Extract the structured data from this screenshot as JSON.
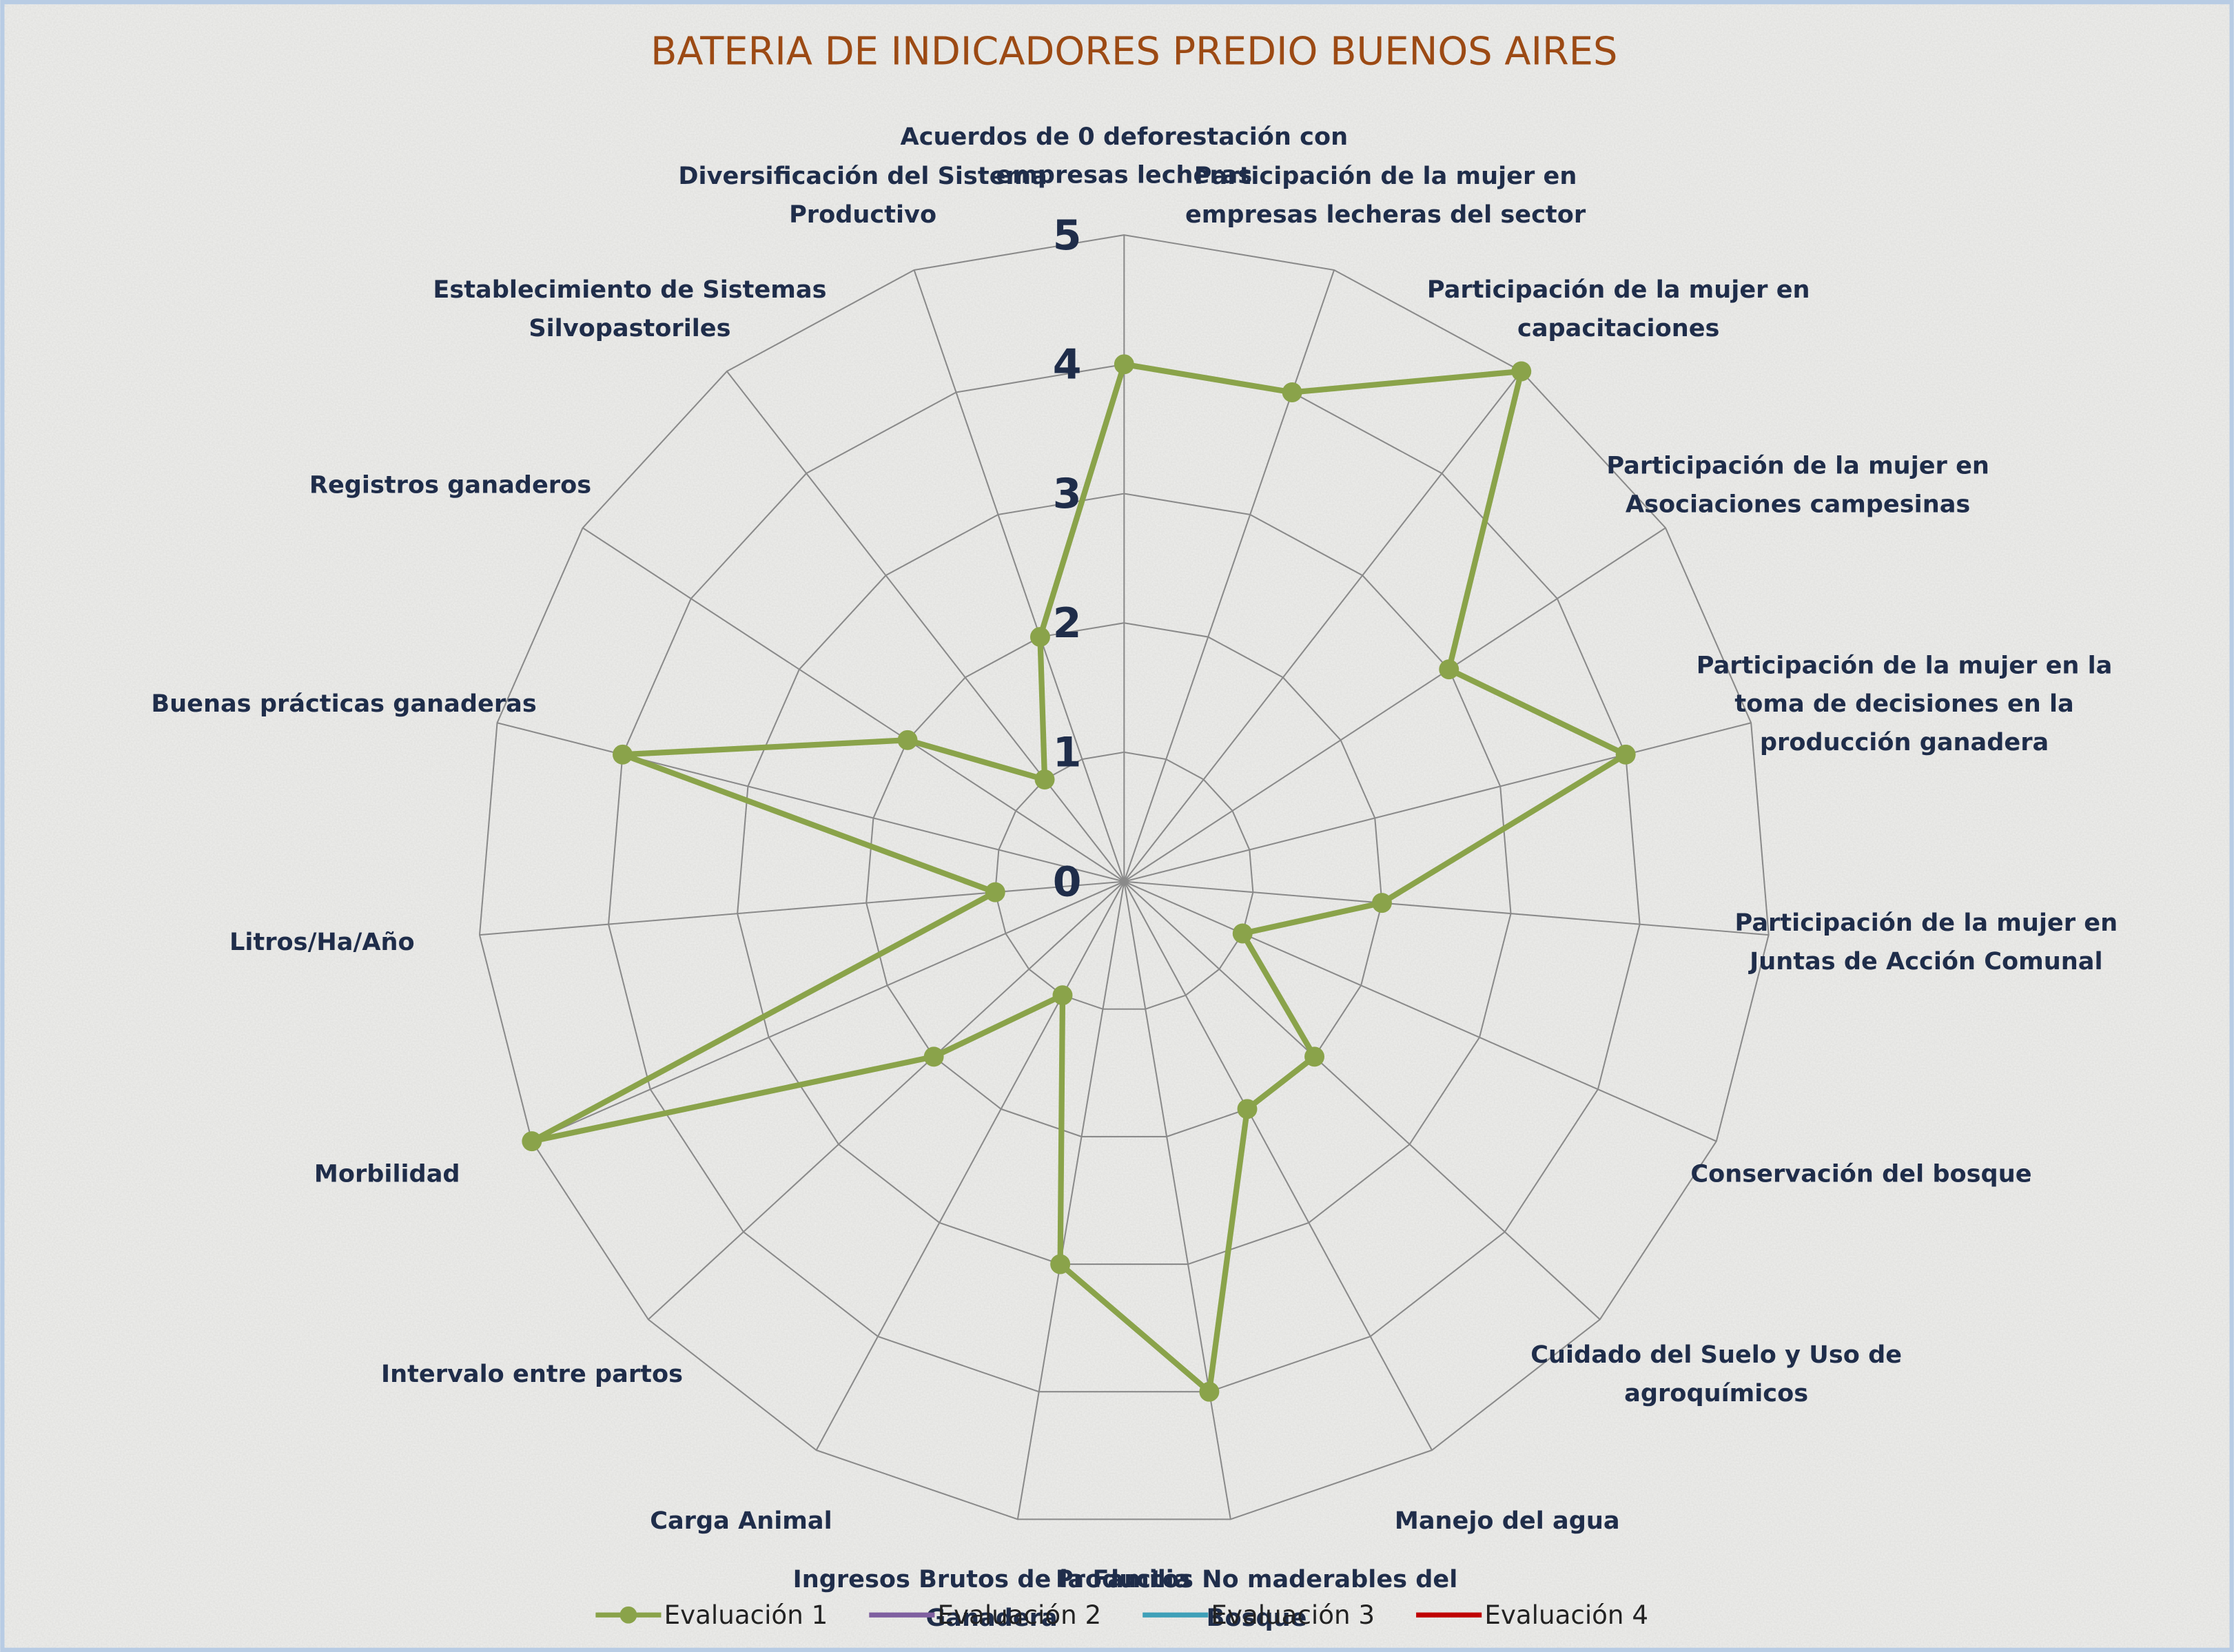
{
  "chart_data": {
    "type": "radar",
    "title": "BATERIA DE INDICADORES PREDIO BUENOS AIRES",
    "categories": [
      "Acuerdos de 0 deforestación con empresas lecheras",
      "Participación de la mujer en empresas lecheras del sector",
      "Participación de la mujer en capacitaciones",
      "Participación de la mujer en Asociaciones campesinas",
      "Participación de la mujer en la toma de decisiones en la producción ganadera",
      "Participación de la mujer en Juntas de Acción Comunal",
      "Conservación del bosque",
      "Cuidado del Suelo y Uso de agroquímicos",
      "Manejo del agua",
      "Productos No maderables del Bosque",
      "Ingresos Brutos de la Familia Ganadera",
      "Carga Animal",
      "Intervalo entre partos",
      "Morbilidad",
      "Litros/Ha/Año",
      "Buenas prácticas ganaderas",
      "Registros ganaderos",
      "Establecimiento de Sistemas Silvopastoriles",
      "Diversificación del Sistema Productivo"
    ],
    "series": [
      {
        "name": "Evaluación 1",
        "color": "#8aa34a",
        "values": [
          4,
          4,
          5,
          3,
          4,
          2,
          1,
          2,
          2,
          4,
          3,
          1,
          2,
          5,
          1,
          4,
          2,
          1,
          2
        ]
      },
      {
        "name": "Evaluación 2",
        "color": "#7f5fa0",
        "values": [
          null,
          null,
          null,
          null,
          null,
          null,
          null,
          null,
          null,
          null,
          null,
          null,
          null,
          null,
          null,
          null,
          null,
          null,
          null
        ]
      },
      {
        "name": "Evaluación 3",
        "color": "#3fa0b8",
        "values": [
          null,
          null,
          null,
          null,
          null,
          null,
          null,
          null,
          null,
          null,
          null,
          null,
          null,
          null,
          null,
          null,
          null,
          null,
          null
        ]
      },
      {
        "name": "Evaluación 4",
        "color": "#c00000",
        "values": [
          null,
          null,
          null,
          null,
          null,
          null,
          null,
          null,
          null,
          null,
          null,
          null,
          null,
          null,
          null,
          null,
          null,
          null,
          null
        ]
      }
    ],
    "rlim": [
      0,
      5
    ],
    "rticks": [
      0,
      1,
      2,
      3,
      4,
      5
    ],
    "grid": true,
    "legend": "bottom"
  }
}
